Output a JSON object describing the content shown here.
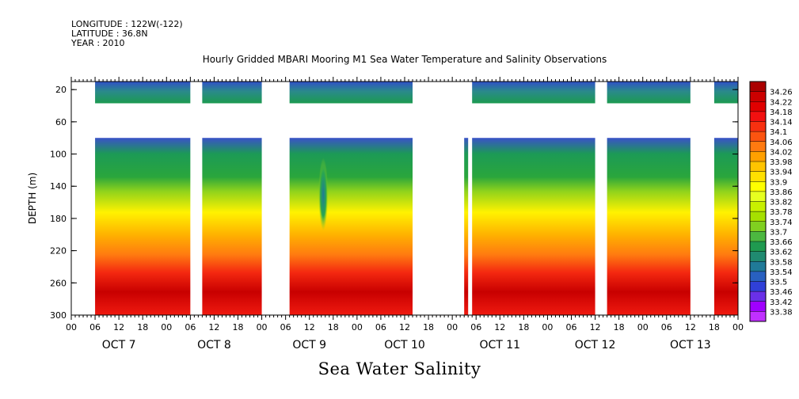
{
  "header": {
    "longitude": "LONGITUDE : 122W(-122)",
    "latitude": "LATITUDE : 36.8N",
    "year": "YEAR : 2010"
  },
  "footer": "Sea Water Salinity",
  "chart_data": {
    "type": "heatmap",
    "title": "Hourly Gridded MBARI Mooring M1 Sea Water Temperature and Salinity Observations",
    "ylabel": "DEPTH (m)",
    "xlabel": "",
    "x_range_hours": [
      0,
      168
    ],
    "y_range_depth": [
      300,
      10
    ],
    "y_ticks": [
      20,
      60,
      100,
      140,
      180,
      220,
      260,
      300
    ],
    "x_hour_tick_labels": [
      "00",
      "06",
      "12",
      "18",
      "00",
      "06",
      "12",
      "18",
      "00",
      "06",
      "12",
      "18",
      "00",
      "06",
      "12",
      "18",
      "00",
      "06",
      "12",
      "18",
      "00",
      "06",
      "12",
      "18",
      "00",
      "06",
      "12",
      "18",
      "00"
    ],
    "x_day_labels": [
      "OCT  7",
      "OCT  8",
      "OCT  9",
      "OCT 10",
      "OCT 11",
      "OCT 12",
      "OCT 13"
    ],
    "colorbar": {
      "levels": [
        "34.26",
        "34.22",
        "34.18",
        "34.14",
        "34.1",
        "34.06",
        "34.02",
        "33.98",
        "33.94",
        "33.9",
        "33.86",
        "33.82",
        "33.78",
        "33.74",
        "33.7",
        "33.66",
        "33.62",
        "33.58",
        "33.54",
        "33.5",
        "33.46",
        "33.42",
        "33.38"
      ],
      "colors": [
        "#aa0000",
        "#cc0000",
        "#e00000",
        "#f21010",
        "#f83010",
        "#fc5410",
        "#ff7a10",
        "#ffa000",
        "#ffc400",
        "#ffe000",
        "#ffff00",
        "#e6ff20",
        "#c8f000",
        "#a6e000",
        "#80d020",
        "#4cb840",
        "#1f9a50",
        "#208a70",
        "#207a98",
        "#2860c0",
        "#3040d8",
        "#6a30e8",
        "#a000ff",
        "#c030ff"
      ]
    },
    "series_description": "Salinity by depth and time; shallow bands 33.5-33.7, mid depths 33.8-33.9, deep layers 34.0-34.26",
    "segments": [
      {
        "start_hour": 6,
        "end_hour": 30,
        "shallow": true,
        "deep": true
      },
      {
        "start_hour": 33,
        "end_hour": 48,
        "shallow": true,
        "deep": true
      },
      {
        "start_hour": 55,
        "end_hour": 86,
        "shallow": true,
        "deep": true
      },
      {
        "start_hour": 86,
        "end_hour": 97,
        "shallow": false,
        "deep": false
      },
      {
        "start_hour": 99,
        "end_hour": 100,
        "shallow": false,
        "deep": true
      },
      {
        "start_hour": 101,
        "end_hour": 132,
        "shallow": true,
        "deep": true
      },
      {
        "start_hour": 135,
        "end_hour": 156,
        "shallow": true,
        "deep": true
      },
      {
        "start_hour": 162,
        "end_hour": 168,
        "shallow": true,
        "deep": true
      }
    ]
  }
}
